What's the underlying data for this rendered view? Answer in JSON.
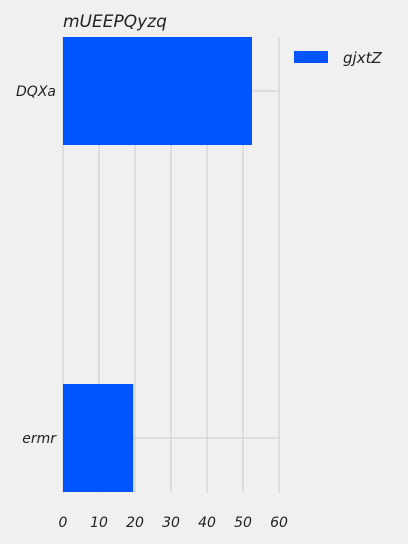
{
  "chart_data": {
    "type": "bar",
    "orientation": "horizontal",
    "title": "mUEEPQyzq",
    "xlabel": "",
    "ylabel": "",
    "categories": [
      "DQXa",
      "ermr"
    ],
    "series": [
      {
        "name": "gjxtZ",
        "values": [
          52.5,
          19.5
        ],
        "color": "#0055ff"
      }
    ],
    "xlim": [
      0,
      60
    ],
    "x_ticks": [
      0,
      10,
      20,
      30,
      40,
      50,
      60
    ],
    "grid": true,
    "legend_position": "top-right",
    "colors": {
      "background": "#f0f0f0",
      "grid": "#cbcbcb",
      "text": "#222222"
    }
  }
}
